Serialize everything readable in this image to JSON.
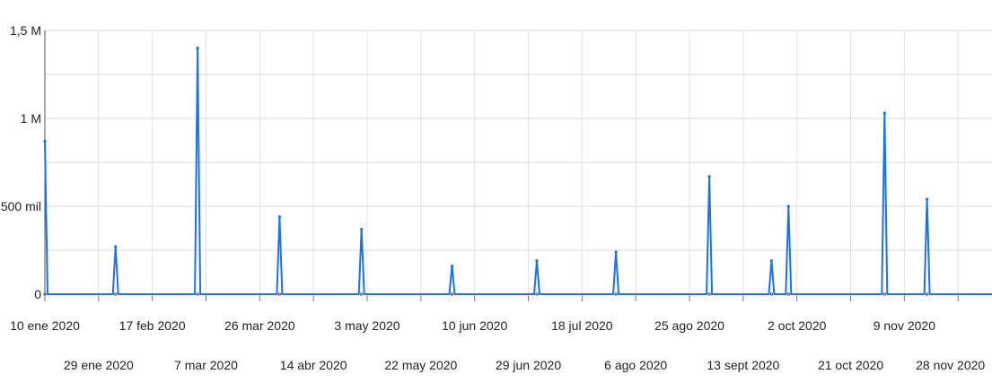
{
  "chart_data": {
    "type": "line",
    "title": "",
    "xlabel": "",
    "ylabel": "",
    "ylim": [
      0,
      1500000
    ],
    "y_ticks": [
      {
        "value": 0,
        "label": "0"
      },
      {
        "value": 500000,
        "label": "500 mil"
      },
      {
        "value": 1000000,
        "label": "1 M"
      },
      {
        "value": 1500000,
        "label": "1,5 M"
      }
    ],
    "x_range": [
      "2020-01-10",
      "2020-12-10"
    ],
    "x_ticks_row1": [
      {
        "date": "2020-01-10",
        "label": "10 ene 2020"
      },
      {
        "date": "2020-02-17",
        "label": "17 feb 2020"
      },
      {
        "date": "2020-03-26",
        "label": "26 mar 2020"
      },
      {
        "date": "2020-05-03",
        "label": "3 may 2020"
      },
      {
        "date": "2020-06-10",
        "label": "10 jun 2020"
      },
      {
        "date": "2020-07-18",
        "label": "18 jul 2020"
      },
      {
        "date": "2020-08-25",
        "label": "25 ago 2020"
      },
      {
        "date": "2020-10-02",
        "label": "2 oct 2020"
      },
      {
        "date": "2020-11-09",
        "label": "9 nov 2020"
      }
    ],
    "x_ticks_row2": [
      {
        "date": "2020-01-29",
        "label": "29 ene 2020"
      },
      {
        "date": "2020-03-07",
        "label": "7 mar 2020"
      },
      {
        "date": "2020-04-14",
        "label": "14 abr 2020"
      },
      {
        "date": "2020-05-22",
        "label": "22 may 2020"
      },
      {
        "date": "2020-06-29",
        "label": "29 jun 2020"
      },
      {
        "date": "2020-08-06",
        "label": "6 ago 2020"
      },
      {
        "date": "2020-09-13",
        "label": "13 sept 2020"
      },
      {
        "date": "2020-10-21",
        "label": "21 oct 2020"
      },
      {
        "date": "2020-11-28",
        "label": "28 nov 2020"
      }
    ],
    "grid": true,
    "line_color": "#1a73e8",
    "series": [
      {
        "points": [
          {
            "date": "2020-01-10",
            "value": 870000
          },
          {
            "date": "2020-02-04",
            "value": 270000
          },
          {
            "date": "2020-03-04",
            "value": 1400000
          },
          {
            "date": "2020-04-02",
            "value": 440000
          },
          {
            "date": "2020-05-01",
            "value": 370000
          },
          {
            "date": "2020-06-02",
            "value": 160000
          },
          {
            "date": "2020-07-02",
            "value": 190000
          },
          {
            "date": "2020-07-30",
            "value": 240000
          },
          {
            "date": "2020-09-01",
            "value": 670000
          },
          {
            "date": "2020-09-23",
            "value": 190000
          },
          {
            "date": "2020-09-29",
            "value": 500000
          },
          {
            "date": "2020-11-02",
            "value": 1030000
          },
          {
            "date": "2020-11-17",
            "value": 540000
          }
        ]
      }
    ]
  }
}
